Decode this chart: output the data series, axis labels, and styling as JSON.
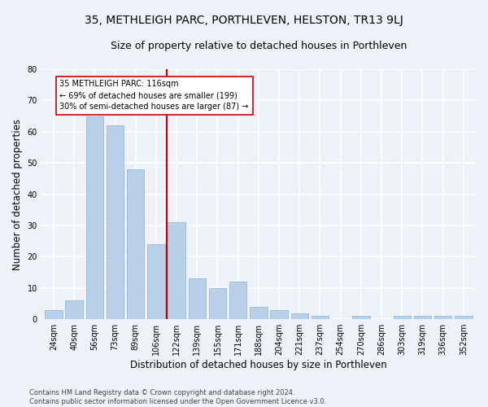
{
  "title": "35, METHLEIGH PARC, PORTHLEVEN, HELSTON, TR13 9LJ",
  "subtitle": "Size of property relative to detached houses in Porthleven",
  "xlabel": "Distribution of detached houses by size in Porthleven",
  "ylabel": "Number of detached properties",
  "categories": [
    "24sqm",
    "40sqm",
    "56sqm",
    "73sqm",
    "89sqm",
    "106sqm",
    "122sqm",
    "139sqm",
    "155sqm",
    "171sqm",
    "188sqm",
    "204sqm",
    "221sqm",
    "237sqm",
    "254sqm",
    "270sqm",
    "286sqm",
    "303sqm",
    "319sqm",
    "336sqm",
    "352sqm"
  ],
  "values": [
    3,
    6,
    65,
    62,
    48,
    24,
    31,
    13,
    10,
    12,
    4,
    3,
    2,
    1,
    0,
    1,
    0,
    1,
    1,
    1,
    1
  ],
  "bar_color": "#b8d0e8",
  "bar_edgecolor": "#8ab0d0",
  "vline_x": 6.0,
  "vline_color": "#cc0000",
  "annotation_text": "35 METHLEIGH PARC: 116sqm\n← 69% of detached houses are smaller (199)\n30% of semi-detached houses are larger (87) →",
  "annotation_box_color": "white",
  "annotation_box_edgecolor": "#cc0000",
  "ylim": [
    0,
    80
  ],
  "yticks": [
    0,
    10,
    20,
    30,
    40,
    50,
    60,
    70,
    80
  ],
  "background_color": "#eef2f8",
  "grid_color": "white",
  "title_fontsize": 10,
  "subtitle_fontsize": 9,
  "xlabel_fontsize": 8.5,
  "ylabel_fontsize": 8.5,
  "tick_fontsize": 7,
  "footer_text": "Contains HM Land Registry data © Crown copyright and database right 2024.\nContains public sector information licensed under the Open Government Licence v3.0."
}
